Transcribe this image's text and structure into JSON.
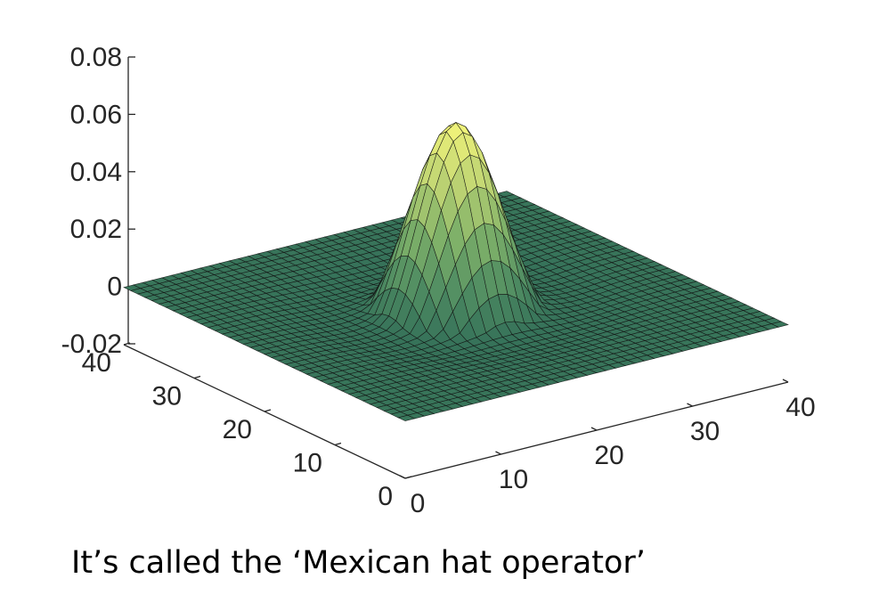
{
  "caption": "It’s called the ‘Mexican hat operator’",
  "chart_data": {
    "type": "surface",
    "title": "",
    "xlabel": "",
    "ylabel": "",
    "zlabel": "",
    "grid_size": 40,
    "xlim": [
      0,
      40
    ],
    "ylim": [
      0,
      40
    ],
    "zlim": [
      -0.02,
      0.08
    ],
    "x_ticks": [
      "0",
      "10",
      "20",
      "30",
      "40"
    ],
    "y_ticks": [
      "0",
      "10",
      "20",
      "30",
      "40"
    ],
    "z_ticks": [
      "-0.02",
      "0",
      "0.02",
      "0.04",
      "0.06",
      "0.08"
    ],
    "peak": {
      "x": 20,
      "y": 20,
      "z": 0.064
    },
    "trough_z": -0.005,
    "colormap": [
      "#2f6b57",
      "#4f8c62",
      "#7fb169",
      "#bfd473",
      "#f4f57a"
    ],
    "edge_color": "#111111"
  }
}
